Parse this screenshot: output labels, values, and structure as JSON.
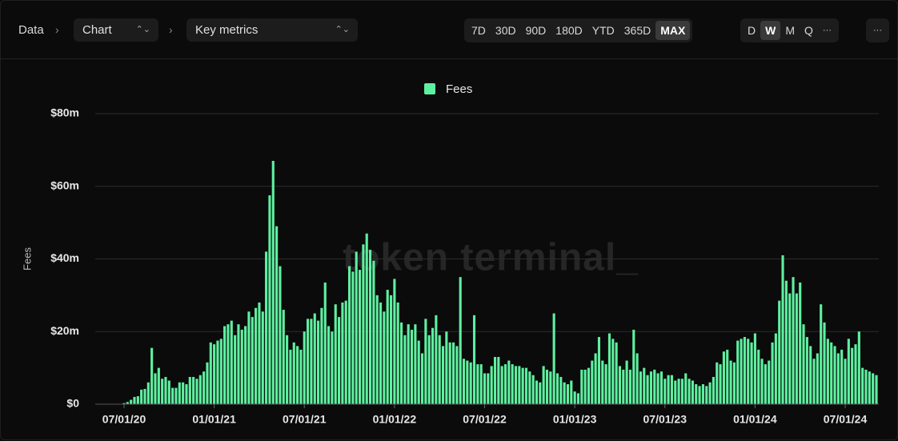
{
  "toolbar": {
    "breadcrumb": "Data",
    "chart_select": "Chart",
    "metric_select": "Key metrics",
    "ranges": [
      "7D",
      "30D",
      "90D",
      "180D",
      "YTD",
      "365D",
      "MAX"
    ],
    "active_range": "MAX",
    "granularities": [
      "D",
      "W",
      "M",
      "Q",
      "···"
    ],
    "active_granularity": "W",
    "more": "···"
  },
  "chart_data": {
    "type": "bar",
    "watermark": "token terminal_",
    "y_label": "Fees",
    "legend": "top",
    "grid": true,
    "ylim": [
      0,
      80
    ],
    "yticks": [
      {
        "value": 0,
        "label": "$0"
      },
      {
        "value": 20,
        "label": "$20m"
      },
      {
        "value": 40,
        "label": "$40m"
      },
      {
        "value": 60,
        "label": "$60m"
      },
      {
        "value": 80,
        "label": "$80m"
      }
    ],
    "categories": [
      "07/01/20",
      null,
      null,
      null,
      null,
      null,
      null,
      null,
      null,
      null,
      null,
      null,
      null,
      null,
      null,
      null,
      null,
      null,
      null,
      null,
      null,
      null,
      null,
      null,
      null,
      null,
      "01/01/21",
      null,
      null,
      null,
      null,
      null,
      null,
      null,
      null,
      null,
      null,
      null,
      null,
      null,
      null,
      null,
      null,
      null,
      null,
      null,
      null,
      null,
      null,
      null,
      null,
      null,
      "07/01/21",
      null,
      null,
      null,
      null,
      null,
      null,
      null,
      null,
      null,
      null,
      null,
      null,
      null,
      null,
      null,
      null,
      null,
      null,
      null,
      null,
      null,
      null,
      null,
      null,
      null,
      "01/01/22",
      null,
      null,
      null,
      null,
      null,
      null,
      null,
      null,
      null,
      null,
      null,
      null,
      null,
      null,
      null,
      null,
      null,
      null,
      null,
      null,
      null,
      null,
      null,
      null,
      null,
      "07/01/22",
      null,
      null,
      null,
      null,
      null,
      null,
      null,
      null,
      null,
      null,
      null,
      null,
      null,
      null,
      null,
      null,
      null,
      null,
      null,
      null,
      null,
      null,
      null,
      null,
      null,
      "01/01/23",
      null,
      null,
      null,
      null,
      null,
      null,
      null,
      null,
      null,
      null,
      null,
      null,
      null,
      null,
      null,
      null,
      null,
      null,
      null,
      null,
      null,
      null,
      null,
      null,
      null,
      "07/01/23",
      null,
      null,
      null,
      null,
      null,
      null,
      null,
      null,
      null,
      null,
      null,
      null,
      null,
      null,
      null,
      null,
      null,
      null,
      null,
      null,
      null,
      null,
      null,
      null,
      null,
      "01/01/24",
      null,
      null,
      null,
      null,
      null,
      null,
      null,
      null,
      null,
      null,
      null,
      null,
      null,
      null,
      null,
      null,
      null,
      null,
      null,
      null,
      null,
      null,
      null,
      null,
      null,
      "07/01/24",
      null,
      null,
      null,
      null,
      null,
      null,
      null,
      null,
      null
    ],
    "series": [
      {
        "name": "Fees",
        "color": "#5ef0a0",
        "values": [
          0.3,
          0.6,
          1.2,
          2,
          2.2,
          4,
          4.2,
          6,
          15.5,
          8.5,
          10,
          7,
          7.5,
          6.5,
          4.5,
          4.5,
          6,
          6,
          5.5,
          7.5,
          7.5,
          7,
          8,
          9,
          11.5,
          17,
          16.5,
          17.5,
          18,
          21.5,
          22,
          23,
          19,
          22,
          20.5,
          21.5,
          25.5,
          24,
          26.5,
          28,
          25.5,
          42,
          57.5,
          67,
          49,
          38,
          26,
          19,
          15,
          17,
          16,
          15,
          20,
          23.5,
          23.5,
          25,
          23,
          26.5,
          33.5,
          21.5,
          20,
          27.5,
          24,
          28,
          28.5,
          38,
          36.5,
          42,
          37,
          44,
          47,
          42.5,
          39.5,
          30,
          28,
          25.5,
          31.5,
          30,
          34.5,
          28,
          22.5,
          19,
          22,
          20.5,
          22,
          17.5,
          14,
          23.5,
          19,
          21,
          24.5,
          19,
          16,
          20,
          17,
          17,
          16,
          35,
          12.5,
          12,
          11.5,
          24.5,
          11,
          11,
          8.5,
          8.5,
          10.5,
          13,
          13,
          10.5,
          11,
          12,
          11,
          10.5,
          10.5,
          10,
          10,
          9,
          8,
          6.5,
          6,
          10.5,
          9.5,
          9,
          25,
          8.5,
          7.5,
          6,
          5.5,
          6.5,
          3.5,
          3,
          9.5,
          9.5,
          10,
          12,
          14,
          18.5,
          12,
          11,
          19.5,
          18,
          17,
          10.5,
          9.5,
          12,
          9.5,
          20.5,
          14,
          9,
          10,
          8,
          9,
          9.5,
          8.5,
          9,
          7,
          8,
          8,
          6.5,
          7,
          7,
          8.5,
          7,
          6.5,
          5.5,
          5,
          5.5,
          5,
          6,
          7.5,
          11.5,
          11,
          14.5,
          15,
          12,
          11.5,
          17.5,
          18,
          18.5,
          18,
          17,
          19.5,
          15,
          12.5,
          11,
          12,
          17,
          19.5,
          28.5,
          41,
          34,
          30.5,
          35,
          30.5,
          33.5,
          22,
          18.5,
          16,
          12.5,
          14,
          27.5,
          22.5,
          18,
          17,
          16,
          14,
          15,
          12.5,
          18,
          15.5,
          16.5,
          20,
          10,
          9.5,
          9,
          8.5,
          8
        ]
      }
    ]
  }
}
